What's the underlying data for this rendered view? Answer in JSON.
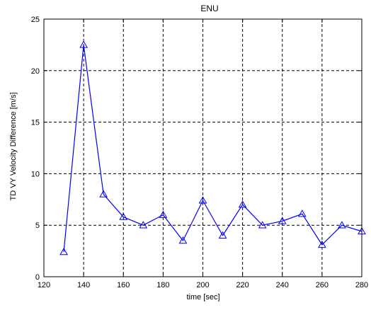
{
  "chart_data": {
    "type": "line",
    "title": "ENU",
    "xlabel": "time [sec]",
    "ylabel": "TD VY Velocity Difference [m/s]",
    "xlim": [
      120,
      280
    ],
    "ylim": [
      0,
      25
    ],
    "xticks": [
      120,
      140,
      160,
      180,
      200,
      220,
      240,
      260,
      280
    ],
    "yticks": [
      0,
      5,
      10,
      15,
      20,
      25
    ],
    "grid": true,
    "grid_style": "dashed",
    "marker": "triangle",
    "colors": {
      "series": "#0000ff",
      "axes": "#000000",
      "grid": "#000000",
      "background": "#ffffff"
    },
    "series": [
      {
        "x": [
          130,
          140,
          150,
          160,
          170,
          180,
          190,
          200,
          210,
          220,
          230,
          240,
          250,
          260,
          270,
          280
        ],
        "y": [
          2.4,
          22.5,
          8.0,
          5.8,
          5.0,
          6.0,
          3.5,
          7.4,
          4.0,
          7.0,
          5.0,
          5.4,
          6.1,
          3.1,
          5.0,
          4.4
        ]
      }
    ]
  }
}
